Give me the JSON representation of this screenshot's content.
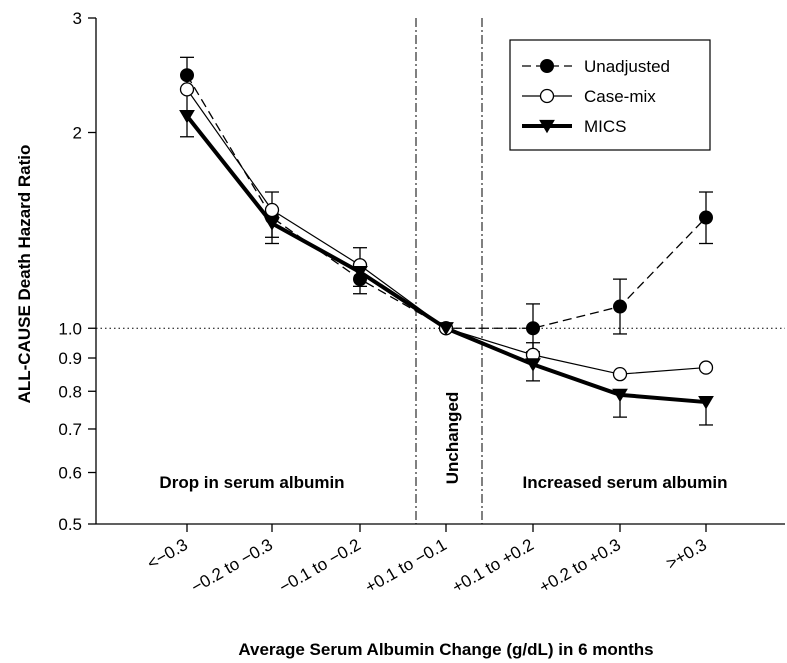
{
  "chart_data": {
    "type": "line",
    "xlabel": "Average Serum Albumin Change (g/dL) in 6 months",
    "ylabel": "ALL-CAUSE Death Hazard Ratio",
    "yscale": "log",
    "ylim": [
      0.5,
      3
    ],
    "yticks": [
      "0.5",
      "0.6",
      "0.7",
      "0.8",
      "0.9",
      "1.0",
      "2",
      "3"
    ],
    "categories": [
      "<−0.3",
      "−0.2 to −0.3",
      "−0.1 to −0.2",
      "+0.1 to −0.1",
      "+0.1 to +0.2",
      "+0.2 to +0.3",
      ">+0.3"
    ],
    "reference_line": 1.0,
    "series": [
      {
        "name": "Unadjusted",
        "marker": "filled-circle",
        "line": "dashed",
        "values": [
          2.45,
          1.48,
          1.19,
          1.0,
          1.0,
          1.08,
          1.48
        ],
        "ci_low": [
          null,
          null,
          null,
          null,
          0.92,
          0.98,
          1.35
        ],
        "ci_high": [
          null,
          null,
          null,
          null,
          1.09,
          1.19,
          1.62
        ]
      },
      {
        "name": "Case-mix",
        "marker": "open-circle",
        "line": "thin",
        "values": [
          2.33,
          1.52,
          1.25,
          1.0,
          0.91,
          0.85,
          0.87
        ],
        "ci_low": [
          null,
          1.38,
          1.16,
          null,
          null,
          null,
          null
        ],
        "ci_high": [
          null,
          1.62,
          1.33,
          null,
          null,
          null,
          null
        ]
      },
      {
        "name": "MICS",
        "marker": "filled-triangle-down",
        "line": "thick",
        "values": [
          2.12,
          1.45,
          1.22,
          1.0,
          0.88,
          0.79,
          0.77
        ],
        "ci_low": [
          1.97,
          1.35,
          1.13,
          null,
          0.83,
          0.73,
          0.71
        ],
        "ci_high": [
          2.61,
          null,
          null,
          null,
          0.95,
          null,
          null
        ]
      }
    ],
    "regions": [
      {
        "label": "Drop in serum albumin"
      },
      {
        "label": "Unchanged"
      },
      {
        "label": "Increased serum albumin"
      }
    ],
    "legend_position": "top-right",
    "grid": false
  }
}
